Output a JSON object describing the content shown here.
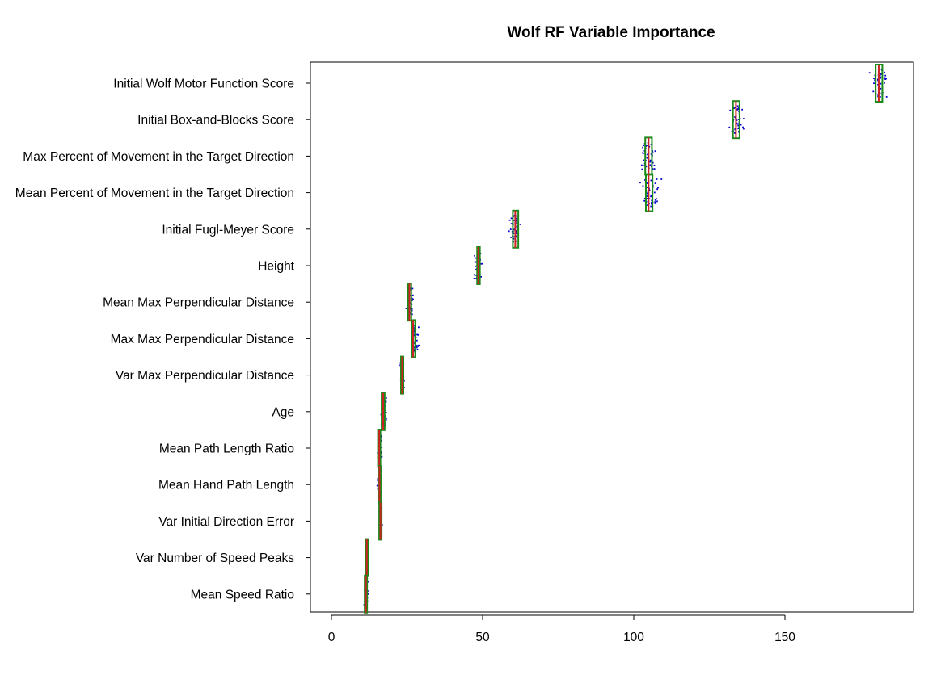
{
  "chart_data": {
    "type": "boxplot",
    "title": "Wolf RF Variable Importance",
    "xlabel": "",
    "ylabel": "",
    "xlim": [
      -7,
      194
    ],
    "x_ticks": [
      0,
      50,
      100,
      150
    ],
    "grid": false,
    "legend": "none",
    "colors": {
      "box": "#1a8a1a",
      "median": "#cc2222",
      "points": "#0000cc",
      "frame": "#000000"
    },
    "categories": [
      "Initial Wolf Motor Function Score",
      "Initial Box-and-Blocks Score",
      "Max Percent of Movement in the Target Direction",
      "Mean Percent of Movement in the Target Direction",
      "Initial Fugl-Meyer Score",
      "Height",
      "Mean Max Perpendicular Distance",
      "Max Max Perpendicular Distance",
      "Var Max Perpendicular Distance",
      "Age",
      "Mean Path Length Ratio",
      "Mean Hand Path Length",
      "Var Initial Direction Error",
      "Var Number of Speed Peaks",
      "Mean Speed Ratio"
    ],
    "series": [
      {
        "q1": 180.0,
        "median": 181.0,
        "q3": 182.2,
        "min": 177.0,
        "max": 185.5
      },
      {
        "q1": 132.8,
        "median": 133.8,
        "q3": 135.0,
        "min": 130.5,
        "max": 137.5
      },
      {
        "q1": 103.8,
        "median": 104.9,
        "q3": 106.0,
        "min": 101.5,
        "max": 108.5
      },
      {
        "q1": 104.0,
        "median": 104.9,
        "q3": 106.2,
        "min": 101.0,
        "max": 109.5
      },
      {
        "q1": 60.0,
        "median": 60.8,
        "q3": 61.8,
        "min": 58.5,
        "max": 63.0
      },
      {
        "q1": 48.2,
        "median": 48.6,
        "q3": 49.1,
        "min": 46.8,
        "max": 50.0
      },
      {
        "q1": 25.3,
        "median": 25.8,
        "q3": 26.4,
        "min": 24.5,
        "max": 27.5
      },
      {
        "q1": 26.5,
        "median": 27.0,
        "q3": 27.7,
        "min": 25.5,
        "max": 29.5
      },
      {
        "q1": 23.0,
        "median": 23.4,
        "q3": 23.8,
        "min": 22.5,
        "max": 24.3
      },
      {
        "q1": 16.6,
        "median": 17.1,
        "q3": 17.6,
        "min": 16.0,
        "max": 18.8
      },
      {
        "q1": 15.4,
        "median": 15.8,
        "q3": 16.2,
        "min": 15.0,
        "max": 17.0
      },
      {
        "q1": 15.5,
        "median": 15.9,
        "q3": 16.3,
        "min": 15.0,
        "max": 16.8
      },
      {
        "q1": 15.8,
        "median": 16.2,
        "q3": 16.6,
        "min": 15.3,
        "max": 17.0
      },
      {
        "q1": 11.3,
        "median": 11.7,
        "q3": 12.1,
        "min": 11.0,
        "max": 12.5
      },
      {
        "q1": 11.0,
        "median": 11.4,
        "q3": 11.8,
        "min": 10.5,
        "max": 12.3
      }
    ]
  }
}
